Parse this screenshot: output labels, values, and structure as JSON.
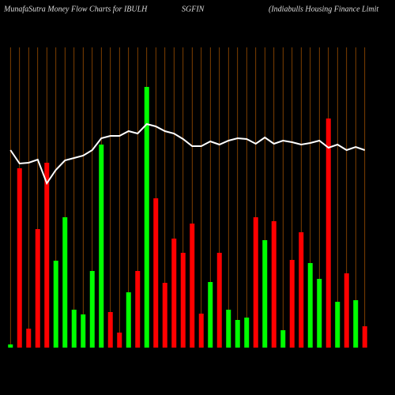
{
  "chart_data": {
    "type": "bar",
    "title_parts": [
      "MunafaSutra  Money Flow  Charts for IBULH",
      "SGFIN",
      "(Indiabulls Housing Finance  Limit"
    ],
    "ylim": [
      0,
      340
    ],
    "values": [
      4,
      227,
      24,
      150,
      234,
      110,
      165,
      48,
      42,
      97,
      257,
      45,
      19,
      70,
      97,
      330,
      189,
      82,
      138,
      120,
      157,
      43,
      83,
      120,
      48,
      35,
      38,
      165,
      136,
      160,
      22,
      111,
      146,
      107,
      87,
      290,
      58,
      94,
      60,
      27
    ],
    "colors": [
      "#00ff00",
      "#ff0000",
      "#ff0000",
      "#ff0000",
      "#ff0000",
      "#00ff00",
      "#00ff00",
      "#00ff00",
      "#00ff00",
      "#00ff00",
      "#00ff00",
      "#ff0000",
      "#ff0000",
      "#00ff00",
      "#ff0000",
      "#00ff00",
      "#ff0000",
      "#ff0000",
      "#ff0000",
      "#ff0000",
      "#ff0000",
      "#ff0000",
      "#00ff00",
      "#ff0000",
      "#00ff00",
      "#00ff00",
      "#00ff00",
      "#ff0000",
      "#00ff00",
      "#ff0000",
      "#00ff00",
      "#ff0000",
      "#ff0000",
      "#00ff00",
      "#00ff00",
      "#ff0000",
      "#00ff00",
      "#ff0000",
      "#00ff00",
      "#ff0000"
    ],
    "line": {
      "color": "#ffffff",
      "values": [
        250,
        233,
        234,
        238,
        208,
        225,
        237,
        240,
        243,
        250,
        265,
        268,
        268,
        274,
        271,
        283,
        280,
        274,
        271,
        264,
        255,
        255,
        261,
        257,
        262,
        265,
        264,
        258,
        266,
        258,
        262,
        260,
        257,
        259,
        262,
        253,
        257,
        250,
        254,
        250
      ]
    },
    "grid_color": "#b35900"
  }
}
